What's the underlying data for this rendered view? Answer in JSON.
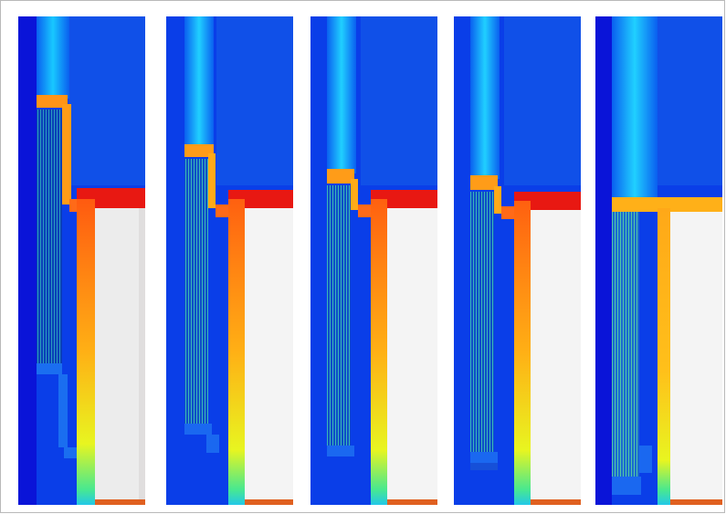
{
  "figure": {
    "panel_count": 5,
    "colormap": [
      "#0a10e0",
      "#0a5ff0",
      "#11c8ff",
      "#39f2c8",
      "#f2f21a",
      "#ffb015",
      "#ff5a18",
      "#e81812"
    ],
    "panels": [
      {
        "label": "",
        "variant": "wide"
      },
      {
        "label": "",
        "variant": "stepped"
      },
      {
        "label": "",
        "variant": "stepped"
      },
      {
        "label": "",
        "variant": "stepped"
      },
      {
        "label": "",
        "variant": "flat"
      }
    ]
  }
}
